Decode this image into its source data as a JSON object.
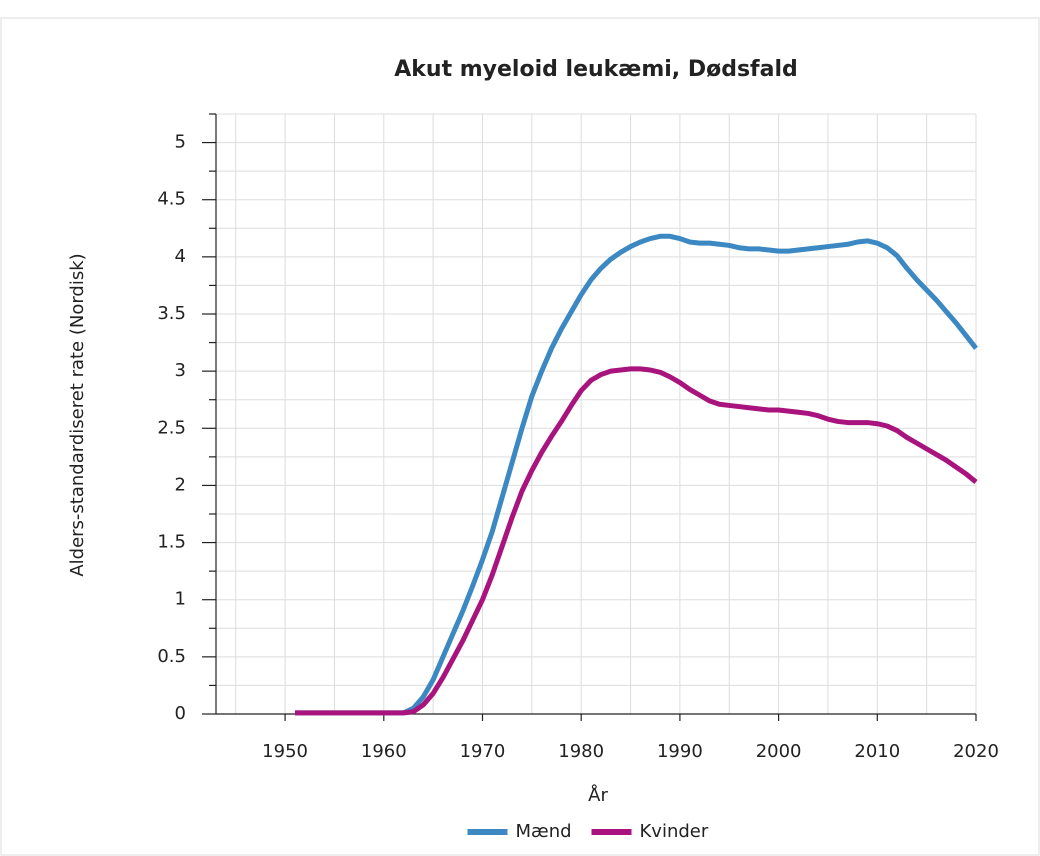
{
  "chart_data": {
    "type": "line",
    "title": "Akut myeloid leukæmi, Dødsfald",
    "xlabel": "År",
    "ylabel": "Alders-standardiseret rate (Nordisk)",
    "x": [
      1951,
      1952,
      1953,
      1954,
      1955,
      1956,
      1957,
      1958,
      1959,
      1960,
      1961,
      1962,
      1963,
      1964,
      1965,
      1966,
      1967,
      1968,
      1969,
      1970,
      1971,
      1972,
      1973,
      1974,
      1975,
      1976,
      1977,
      1978,
      1979,
      1980,
      1981,
      1982,
      1983,
      1984,
      1985,
      1986,
      1987,
      1988,
      1989,
      1990,
      1991,
      1992,
      1993,
      1994,
      1995,
      1996,
      1997,
      1998,
      1999,
      2000,
      2001,
      2002,
      2003,
      2004,
      2005,
      2006,
      2007,
      2008,
      2009,
      2010,
      2011,
      2012,
      2013,
      2014,
      2015,
      2016,
      2017,
      2018,
      2019,
      2020
    ],
    "series": [
      {
        "name": "Mænd",
        "color": "#3b88c2",
        "values": [
          0.01,
          0.01,
          0.01,
          0.01,
          0.01,
          0.01,
          0.01,
          0.01,
          0.01,
          0.01,
          0.01,
          0.01,
          0.05,
          0.15,
          0.3,
          0.5,
          0.7,
          0.9,
          1.12,
          1.35,
          1.6,
          1.9,
          2.2,
          2.5,
          2.78,
          3.0,
          3.2,
          3.37,
          3.52,
          3.67,
          3.8,
          3.9,
          3.98,
          4.04,
          4.09,
          4.13,
          4.16,
          4.18,
          4.18,
          4.16,
          4.13,
          4.12,
          4.12,
          4.11,
          4.1,
          4.08,
          4.07,
          4.07,
          4.06,
          4.05,
          4.05,
          4.06,
          4.07,
          4.08,
          4.09,
          4.1,
          4.11,
          4.13,
          4.14,
          4.12,
          4.08,
          4.01,
          3.9,
          3.8,
          3.71,
          3.62,
          3.52,
          3.42,
          3.31,
          3.2
        ]
      },
      {
        "name": "Kvinder",
        "color": "#a8137d",
        "values": [
          0.01,
          0.01,
          0.01,
          0.01,
          0.01,
          0.01,
          0.01,
          0.01,
          0.01,
          0.01,
          0.01,
          0.01,
          0.02,
          0.08,
          0.18,
          0.32,
          0.48,
          0.64,
          0.82,
          1.0,
          1.22,
          1.47,
          1.72,
          1.95,
          2.13,
          2.29,
          2.43,
          2.56,
          2.7,
          2.83,
          2.92,
          2.97,
          3.0,
          3.01,
          3.02,
          3.02,
          3.01,
          2.99,
          2.95,
          2.9,
          2.84,
          2.79,
          2.74,
          2.71,
          2.7,
          2.69,
          2.68,
          2.67,
          2.66,
          2.66,
          2.65,
          2.64,
          2.63,
          2.61,
          2.58,
          2.56,
          2.55,
          2.55,
          2.55,
          2.54,
          2.52,
          2.48,
          2.42,
          2.37,
          2.32,
          2.27,
          2.22,
          2.16,
          2.1,
          2.03
        ]
      }
    ],
    "xlim": [
      1943,
      2020
    ],
    "xticks": [
      1950,
      1960,
      1970,
      1980,
      1990,
      2000,
      2010,
      2020
    ],
    "xticks_minor": [
      1945,
      1955,
      1965,
      1975,
      1985,
      1995,
      2005,
      2015
    ],
    "ylim": [
      0,
      5.25
    ],
    "yticks": [
      0,
      0.5,
      1,
      1.5,
      2,
      2.5,
      3,
      3.5,
      4,
      4.5,
      5
    ],
    "yticks_minor": [
      0.25,
      0.75,
      1.25,
      1.75,
      2.25,
      2.75,
      3.25,
      3.75,
      4.25,
      4.75,
      5.25
    ],
    "grid": true,
    "legend": "bottom"
  }
}
